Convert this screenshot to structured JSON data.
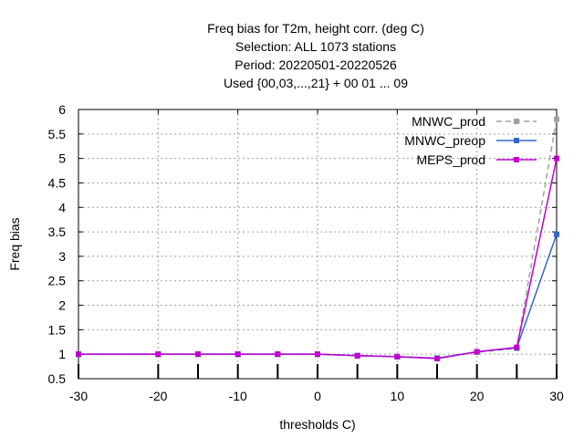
{
  "chart_data": {
    "type": "line",
    "title_lines": [
      "Freq bias  for T2m, height corr. (deg C)",
      "Selection: ALL    1073 stations",
      "Period: 20220501-20220526",
      "Used {00,03,...,21} + 00 01 ... 09"
    ],
    "xlabel": "thresholds C)",
    "ylabel": "Freq bias",
    "xlim": [
      -30,
      30
    ],
    "ylim": [
      0.5,
      6
    ],
    "xticks": [
      -30,
      -20,
      -10,
      0,
      10,
      20,
      30
    ],
    "yticks": [
      0.5,
      1,
      1.5,
      2,
      2.5,
      3,
      3.5,
      4,
      4.5,
      5,
      5.5,
      6
    ],
    "ytick_labels": [
      "0.5",
      "1",
      "1.5",
      "2",
      "2.5",
      "3",
      "3.5",
      "4",
      "4.5",
      "5",
      "5.5",
      "6"
    ],
    "grid": true,
    "legend_position": "top-right",
    "x": [
      -30,
      -20,
      -15,
      -10,
      -5,
      0,
      5,
      10,
      15,
      20,
      25,
      30
    ],
    "series": [
      {
        "name": "MNWC_prod",
        "color": "#a0a0a0",
        "dashed": true,
        "values": [
          1.0,
          1.0,
          1.0,
          1.0,
          1.0,
          1.0,
          0.97,
          0.95,
          0.92,
          1.04,
          1.12,
          5.8
        ]
      },
      {
        "name": "MNWC_preop",
        "color": "#3465c8",
        "dashed": false,
        "values": [
          1.0,
          1.0,
          1.0,
          1.0,
          1.0,
          1.0,
          0.97,
          0.95,
          0.92,
          1.05,
          1.13,
          3.45
        ]
      },
      {
        "name": "MEPS_prod",
        "color": "#c000d0",
        "dashed": false,
        "values": [
          1.0,
          1.0,
          1.0,
          1.0,
          1.0,
          1.0,
          0.97,
          0.95,
          0.91,
          1.05,
          1.14,
          5.0
        ]
      }
    ]
  }
}
